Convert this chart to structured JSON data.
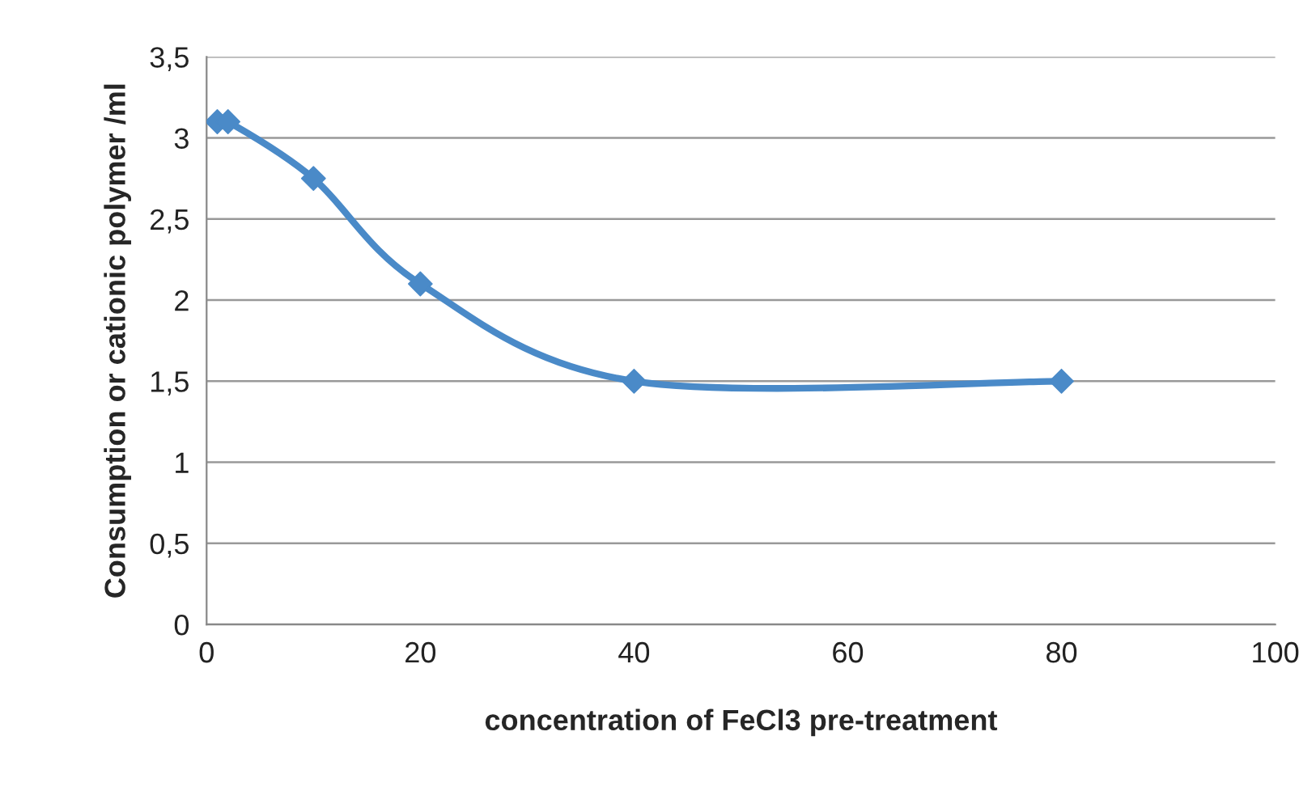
{
  "chart_data": {
    "type": "line",
    "xlabel": "concentration of FeCl3 pre-treatment",
    "ylabel": "Consumption or cationic polymer /ml",
    "x": [
      1,
      2,
      10,
      20,
      40,
      80
    ],
    "series": [
      {
        "color": "#4a8ac8",
        "values": [
          3.1,
          3.1,
          2.75,
          2.1,
          1.5,
          1.5
        ]
      }
    ],
    "xlim": [
      0,
      100
    ],
    "xticks": [
      0,
      20,
      40,
      60,
      80,
      100
    ],
    "ylim": [
      0,
      3.5
    ],
    "yticks": [
      0,
      {
        "value": 0.5,
        "label": "0,5"
      },
      1,
      {
        "value": 1.5,
        "label": "1,5"
      },
      2,
      {
        "value": 2.5,
        "label": "2,5"
      },
      3,
      {
        "value": 3.5,
        "label": "3,5"
      }
    ],
    "grid": "y",
    "marker": "diamond",
    "line_style": "solid"
  }
}
